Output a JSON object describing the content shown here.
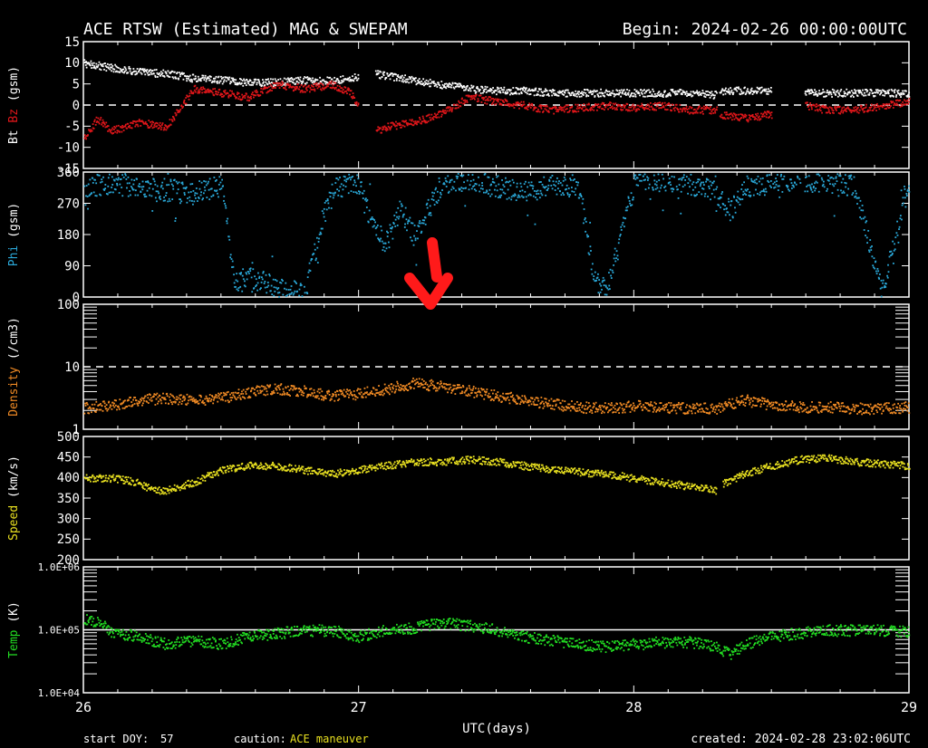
{
  "header": {
    "title": "ACE RTSW (Estimated) MAG & SWEPAM",
    "begin": "Begin: 2024-02-26 00:00:00UTC"
  },
  "footer": {
    "start_doy_label": "start DOY:",
    "start_doy": "57",
    "caution_label": "caution:",
    "caution_text": "ACE maneuver",
    "created": "created: 2024-02-28 23:02:06UTC",
    "xaxis_label": "UTC(days)",
    "day_ticks": [
      "26",
      "27",
      "28",
      "29"
    ]
  },
  "colors": {
    "background": "#000000",
    "frame": "#ffffff",
    "bt": "#ffffff",
    "bz": "#e0161a",
    "phi": "#2aa8d8",
    "density": "#f08a24",
    "speed": "#e8e020",
    "temp": "#22dd22",
    "caution": "#e8e020",
    "arrow": "#ff1a1a"
  },
  "chart_data": [
    {
      "type": "line",
      "panel": "magnetic field",
      "ylabel_parts": [
        "Bt",
        "Bz",
        "(gsm)"
      ],
      "ylim": [
        -15,
        15
      ],
      "yticks": [
        "15",
        "10",
        "5",
        "0",
        "-5",
        "-10",
        "-15"
      ],
      "xlim": [
        26,
        29
      ],
      "reference_line": 0,
      "gaps": [
        [
          27.0,
          27.06
        ],
        [
          28.3,
          28.31
        ],
        [
          28.5,
          28.62
        ]
      ],
      "series": [
        {
          "name": "Bt",
          "x": [
            26.0,
            26.05,
            26.1,
            26.2,
            26.3,
            26.4,
            26.5,
            26.6,
            26.7,
            26.8,
            26.9,
            26.97,
            27.06,
            27.1,
            27.2,
            27.3,
            27.4,
            27.5,
            27.6,
            27.7,
            27.8,
            27.9,
            28.0,
            28.1,
            28.2,
            28.3,
            28.31,
            28.4,
            28.5,
            28.62,
            28.7,
            28.8,
            28.9,
            29.0
          ],
          "values": [
            10,
            9.5,
            9,
            8,
            7.5,
            6.5,
            6,
            5.5,
            5.5,
            6,
            6,
            6.5,
            7.5,
            7,
            6,
            5,
            4,
            3.5,
            3.5,
            3,
            3,
            3,
            3,
            3,
            3,
            2.5,
            3.5,
            3.5,
            3.5,
            3,
            3,
            3,
            3,
            3
          ]
        },
        {
          "name": "Bz",
          "x": [
            26.0,
            26.05,
            26.1,
            26.2,
            26.3,
            26.4,
            26.5,
            26.6,
            26.7,
            26.8,
            26.9,
            26.97,
            27.06,
            27.1,
            27.2,
            27.3,
            27.4,
            27.5,
            27.6,
            27.7,
            27.8,
            27.9,
            28.0,
            28.1,
            28.2,
            28.3,
            28.31,
            28.4,
            28.5,
            28.62,
            28.7,
            28.8,
            28.9,
            29.0
          ],
          "values": [
            -8,
            -3,
            -6,
            -4,
            -5,
            4,
            3,
            2,
            5,
            4,
            5,
            3,
            -6,
            -5,
            -4,
            -2,
            2,
            1,
            0,
            -1,
            -0.5,
            0,
            -0.5,
            0,
            -1,
            -1,
            -2,
            -3,
            -2,
            0,
            -1,
            -1,
            0,
            1
          ]
        }
      ]
    },
    {
      "type": "scatter",
      "panel": "phi",
      "ylabel": "Phi (gsm)",
      "ylim": [
        0,
        360
      ],
      "yticks": [
        "360",
        "270",
        "180",
        "90",
        "0"
      ],
      "xlim": [
        26,
        29
      ],
      "series": [
        {
          "name": "Phi",
          "x": [
            26.0,
            26.1,
            26.2,
            26.3,
            26.4,
            26.5,
            26.55,
            26.6,
            26.7,
            26.8,
            26.9,
            27.0,
            27.05,
            27.1,
            27.15,
            27.2,
            27.3,
            27.4,
            27.5,
            27.6,
            27.7,
            27.8,
            27.85,
            27.9,
            28.0,
            28.1,
            28.2,
            28.3,
            28.35,
            28.4,
            28.5,
            28.6,
            28.7,
            28.8,
            28.9,
            29.0
          ],
          "values": [
            320,
            330,
            320,
            310,
            300,
            320,
            40,
            60,
            30,
            10,
            320,
            330,
            200,
            160,
            260,
            180,
            330,
            340,
            320,
            300,
            330,
            320,
            60,
            20,
            330,
            340,
            330,
            300,
            250,
            320,
            330,
            340,
            330,
            320,
            10,
            340
          ]
        }
      ]
    },
    {
      "type": "scatter",
      "panel": "density",
      "ylabel": "Density (/cm3)",
      "yscale": "log",
      "ylim": [
        1,
        100
      ],
      "yticks": [
        "100",
        "10",
        "1"
      ],
      "xlim": [
        26,
        29
      ],
      "reference_line": 10,
      "series": [
        {
          "name": "Density",
          "x": [
            26.0,
            26.1,
            26.2,
            26.3,
            26.4,
            26.5,
            26.6,
            26.7,
            26.8,
            26.9,
            27.0,
            27.1,
            27.2,
            27.3,
            27.4,
            27.5,
            27.6,
            27.7,
            27.8,
            27.9,
            28.0,
            28.1,
            28.2,
            28.3,
            28.4,
            28.5,
            28.6,
            28.7,
            28.8,
            28.9,
            29.0
          ],
          "values": [
            2.2,
            2.5,
            3.0,
            3.2,
            3.0,
            3.2,
            4.0,
            4.5,
            4.2,
            3.5,
            3.8,
            4.5,
            5.5,
            5.0,
            4.2,
            3.5,
            3.0,
            2.6,
            2.3,
            2.2,
            2.4,
            2.3,
            2.2,
            2.2,
            3.0,
            2.5,
            2.3,
            2.3,
            2.2,
            2.2,
            2.3
          ]
        }
      ]
    },
    {
      "type": "scatter",
      "panel": "speed",
      "ylabel": "Speed (km/s)",
      "ylim": [
        200,
        500
      ],
      "yticks": [
        "500",
        "450",
        "400",
        "350",
        "300",
        "250",
        "200"
      ],
      "xlim": [
        26,
        29
      ],
      "gaps": [
        [
          28.3,
          28.32
        ]
      ],
      "series": [
        {
          "name": "Speed",
          "x": [
            26.0,
            26.1,
            26.2,
            26.25,
            26.3,
            26.4,
            26.5,
            26.6,
            26.7,
            26.8,
            26.9,
            27.0,
            27.1,
            27.2,
            27.3,
            27.4,
            27.5,
            27.6,
            27.7,
            27.8,
            27.9,
            28.0,
            28.1,
            28.2,
            28.3,
            28.32,
            28.4,
            28.5,
            28.6,
            28.7,
            28.8,
            28.9,
            29.0
          ],
          "values": [
            400,
            400,
            390,
            370,
            370,
            390,
            420,
            430,
            430,
            420,
            410,
            420,
            430,
            440,
            440,
            445,
            440,
            430,
            420,
            415,
            410,
            400,
            390,
            380,
            370,
            385,
            410,
            430,
            445,
            450,
            440,
            435,
            430
          ]
        }
      ]
    },
    {
      "type": "scatter",
      "panel": "temperature",
      "ylabel": "Temp (K)",
      "yscale": "log",
      "ylim": [
        10000,
        1000000
      ],
      "yticks": [
        "1.0E+06",
        "1.0E+05",
        "1.0E+04"
      ],
      "xlim": [
        26,
        29
      ],
      "reference_line": 100000,
      "series": [
        {
          "name": "Temp",
          "x": [
            26.0,
            26.05,
            26.1,
            26.2,
            26.3,
            26.4,
            26.5,
            26.6,
            26.7,
            26.8,
            26.9,
            27.0,
            27.1,
            27.2,
            27.3,
            27.4,
            27.5,
            27.6,
            27.7,
            27.8,
            27.9,
            28.0,
            28.1,
            28.2,
            28.3,
            28.35,
            28.4,
            28.5,
            28.6,
            28.7,
            28.8,
            28.9,
            29.0
          ],
          "values": [
            150000,
            140000,
            90000,
            80000,
            60000,
            70000,
            60000,
            80000,
            90000,
            100000,
            100000,
            80000,
            100000,
            110000,
            130000,
            120000,
            100000,
            80000,
            70000,
            60000,
            55000,
            60000,
            65000,
            65000,
            55000,
            40000,
            60000,
            80000,
            90000,
            100000,
            100000,
            100000,
            95000
          ]
        }
      ]
    }
  ]
}
